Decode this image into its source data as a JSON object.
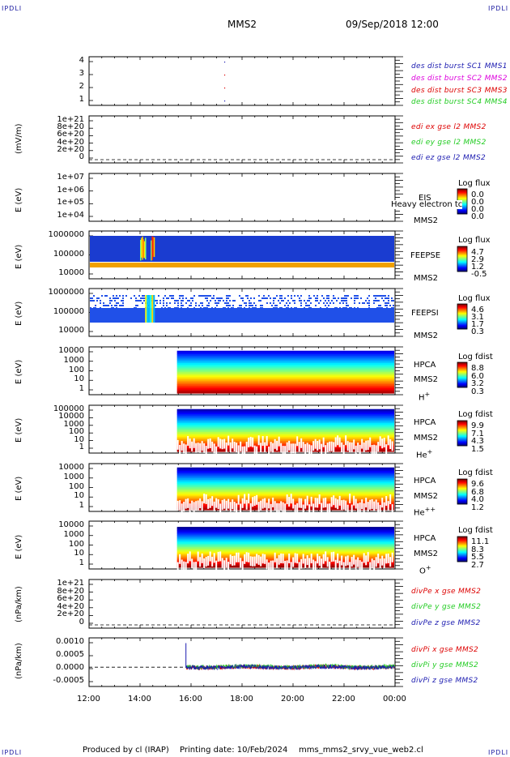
{
  "header": {
    "corner_left_top": "IPDLI",
    "corner_right_top": "IPDLI",
    "corner_left_bottom": "IPDLI",
    "corner_right_bottom": "IPDLI",
    "spacecraft": "MMS2",
    "datetime": "09/Sep/2018 12:00"
  },
  "footer": {
    "produced": "Produced by cl (IRAP)",
    "printing": "Printing date: 10/Feb/2024",
    "file": "mms_mms2_srvy_vue_web2.cl"
  },
  "colors": {
    "red": "#dd0000",
    "green": "#22cc22",
    "blue": "#1a1ab0",
    "magenta": "#dd00dd",
    "orange": "#f0a000"
  },
  "chart_data": [
    {
      "type": "scatter",
      "panel": "burst",
      "yticks": [
        "4",
        "3",
        "2",
        "1"
      ],
      "ylim": [
        0.5,
        4.5
      ],
      "legend": [
        {
          "text": "des dist burst SC1 MMS1",
          "color": "#1a1ab0"
        },
        {
          "text": "des dist burst SC2 MMS2",
          "color": "#dd00dd"
        },
        {
          "text": "des dist burst SC3 MMS3",
          "color": "#dd0000"
        },
        {
          "text": "des dist burst SC4 MMS4",
          "color": "#22cc22"
        }
      ],
      "points": [
        {
          "x": 17.3,
          "y": 4
        },
        {
          "x": 17.3,
          "y": 3
        },
        {
          "x": 17.3,
          "y": 2
        },
        {
          "x": 17.3,
          "y": 1
        }
      ]
    },
    {
      "type": "line",
      "panel": "edi",
      "ylabel": "(mV/m)",
      "yticks": [
        "1e+21",
        "8e+20",
        "6e+20",
        "4e+20",
        "2e+20",
        "0"
      ],
      "legend": [
        {
          "text": "edi ex gse l2 MMS2",
          "color": "#dd0000"
        },
        {
          "text": "edi ey gse l2 MMS2",
          "color": "#22cc22"
        },
        {
          "text": "edi ez gse l2 MMS2",
          "color": "#1a1ab0"
        }
      ]
    },
    {
      "type": "heatmap",
      "panel": "eis",
      "ylabel": "E (eV)",
      "yticks": [
        "1e+07",
        "1e+06",
        "1e+05",
        "1e+04"
      ],
      "instrument": "EIS",
      "instrument_extra": "Heavy electron tc",
      "spacecraft": "MMS2",
      "colorbar_title": "Log flux",
      "colorbar_values": [
        "0.0",
        "0.0",
        "0.0",
        "0.0"
      ]
    },
    {
      "type": "heatmap",
      "panel": "feepse",
      "ylabel": "E (eV)",
      "yticks": [
        "1000000",
        "100000",
        "10000"
      ],
      "instrument": "FEEPSE",
      "spacecraft": "MMS2",
      "colorbar_title": "Log flux",
      "colorbar_values": [
        "4.7",
        "2.9",
        "1.2",
        "-0.5"
      ]
    },
    {
      "type": "heatmap",
      "panel": "feepsi",
      "ylabel": "E (eV)",
      "yticks": [
        "1000000",
        "100000",
        "10000"
      ],
      "instrument": "FEEPSI",
      "spacecraft": "MMS2",
      "colorbar_title": "Log flux",
      "colorbar_values": [
        "4.6",
        "3.1",
        "1.7",
        "0.3"
      ]
    },
    {
      "type": "heatmap",
      "panel": "hpca_h",
      "ylabel": "E (eV)",
      "yticks": [
        "10000",
        "1000",
        "100",
        "10",
        "1"
      ],
      "instrument": "HPCA",
      "spacecraft": "MMS2",
      "species": "H",
      "species_charge": "+",
      "colorbar_title": "Log fdist",
      "colorbar_values": [
        "8.8",
        "6.0",
        "3.2",
        "0.3"
      ]
    },
    {
      "type": "heatmap",
      "panel": "hpca_he",
      "ylabel": "E (eV)",
      "yticks": [
        "100000",
        "10000",
        "1000",
        "100",
        "10",
        "1"
      ],
      "instrument": "HPCA",
      "spacecraft": "MMS2",
      "species": "He",
      "species_charge": "+",
      "colorbar_title": "Log fdist",
      "colorbar_values": [
        "9.9",
        "7.1",
        "4.3",
        "1.5"
      ]
    },
    {
      "type": "heatmap",
      "panel": "hpca_hepp",
      "ylabel": "E (eV)",
      "yticks": [
        "10000",
        "1000",
        "100",
        "10",
        "1"
      ],
      "instrument": "HPCA",
      "spacecraft": "MMS2",
      "species": "He",
      "species_charge": "++",
      "colorbar_title": "Log fdist",
      "colorbar_values": [
        "9.6",
        "6.8",
        "4.0",
        "1.2"
      ]
    },
    {
      "type": "heatmap",
      "panel": "hpca_o",
      "ylabel": "E (eV)",
      "yticks": [
        "10000",
        "1000",
        "100",
        "10",
        "1"
      ],
      "instrument": "HPCA",
      "spacecraft": "MMS2",
      "species": "O",
      "species_charge": "+",
      "colorbar_title": "Log fdist",
      "colorbar_values": [
        "11.1",
        "8.3",
        "5.5",
        "2.7"
      ]
    },
    {
      "type": "line",
      "panel": "divpe",
      "ylabel": "(nPa/km)",
      "yticks": [
        "1e+21",
        "8e+20",
        "6e+20",
        "4e+20",
        "2e+20",
        "0"
      ],
      "legend": [
        {
          "text": "divPe x gse MMS2",
          "color": "#dd0000"
        },
        {
          "text": "divPe y gse MMS2",
          "color": "#22cc22"
        },
        {
          "text": "divPe z gse MMS2",
          "color": "#1a1ab0"
        }
      ]
    },
    {
      "type": "line",
      "panel": "divpi",
      "ylabel": "(nPa/km)",
      "yticks": [
        "0.0010",
        "0.0005",
        "0.0000",
        "-0.0005"
      ],
      "ylim": [
        -0.0008,
        0.0013
      ],
      "legend": [
        {
          "text": "divPi x gse MMS2",
          "color": "#dd0000"
        },
        {
          "text": "divPi y gse MMS2",
          "color": "#22cc22"
        },
        {
          "text": "divPi z gse MMS2",
          "color": "#1a1ab0"
        }
      ]
    }
  ],
  "xaxis": {
    "ticks": [
      "12:00",
      "14:00",
      "16:00",
      "18:00",
      "20:00",
      "22:00",
      "00:00"
    ]
  }
}
